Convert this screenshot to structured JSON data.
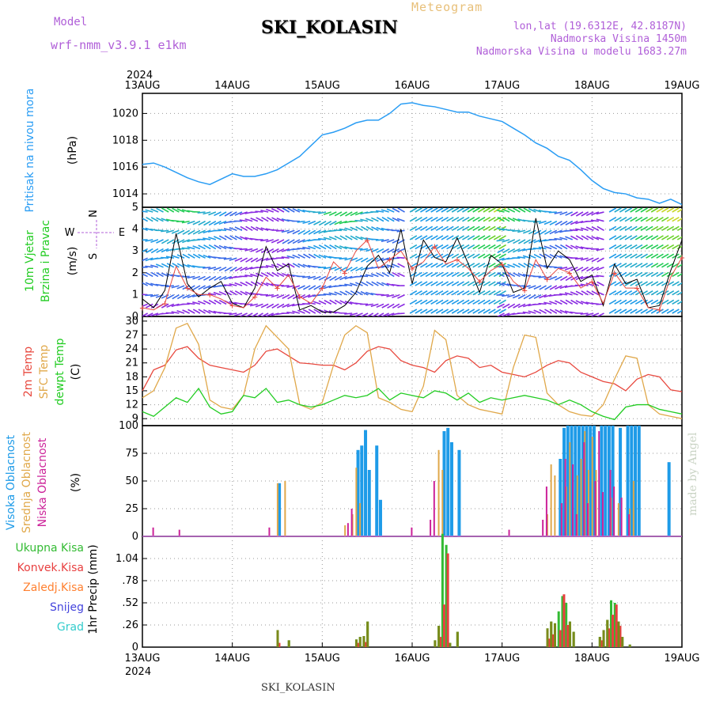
{
  "header": {
    "title": "SKI_KOLASIN",
    "subtitle": "Meteogram",
    "model_label": "Model",
    "model_name": "wrf-nmm_v3.9.1 e1km",
    "lonlat": "lon,lat (19.6312E, 42.8187N)",
    "elevation": "Nadmorska Visina 1450m",
    "model_elevation": "Nadmorska Visina u modelu 1683.27m",
    "year_top": "2024",
    "year_bottom": "2024",
    "bottom_station": "SKI_KOLASIN",
    "credit": "made by Angel"
  },
  "dates": [
    "13AUG",
    "14AUG",
    "15AUG",
    "16AUG",
    "17AUG",
    "18AUG",
    "19AUG"
  ],
  "colors": {
    "pressure": "#2a9df4",
    "temp2m": "#e8493f",
    "sfc": "#e0a84a",
    "dewpt": "#22cc22",
    "high_cloud": "#1e9be8",
    "mid_cloud": "#e0a84a",
    "low_cloud": "#cc2299",
    "total_precip": "#33bb33",
    "conv_precip": "#e84040",
    "frozen_precip": "#ff8030",
    "snow": "#4444dd",
    "hail": "#33cccc"
  },
  "panels": {
    "pressure": {
      "labels": [
        "Pritisak na nivou mora",
        "(hPa)"
      ]
    },
    "wind": {
      "labels": [
        "10m Vjetar",
        "Brzina i Pravac",
        "(m/s)"
      ],
      "compass": {
        "n": "N",
        "s": "S",
        "w": "W",
        "e": "E"
      }
    },
    "temp": {
      "labels": [
        "2m Temp",
        "SFC Temp",
        "dewpt Temp",
        "(C)"
      ]
    },
    "cloud": {
      "labels": [
        "Visoka Oblacnost",
        "Srednja Oblacnost",
        "Niska Oblacnost",
        "(%)"
      ]
    },
    "precip": {
      "labels": [
        "Ukupna Kisa",
        "Konvek.Kisa",
        "Zaledj.Kisa",
        "Snijeg",
        "Grad",
        "1hr Precip (mm)"
      ]
    }
  },
  "chart_data": [
    {
      "type": "line",
      "name": "pressure",
      "ylabel": "Pritisak na nivou mora (hPa)",
      "ylim": [
        1013,
        1021.5
      ],
      "yticks": [
        1014,
        1016,
        1018,
        1020
      ],
      "x": [
        0,
        3,
        6,
        9,
        12,
        15,
        18,
        21,
        24,
        27,
        30,
        33,
        36,
        39,
        42,
        45,
        48,
        51,
        54,
        57,
        60,
        63,
        66,
        69,
        72,
        75,
        78,
        81,
        84,
        87,
        90,
        93,
        96,
        99,
        102,
        105,
        108,
        111,
        114,
        117,
        120,
        123,
        126,
        129,
        132,
        135,
        138,
        141,
        144
      ],
      "series": [
        {
          "values": [
            1016.2,
            1016.3,
            1016.0,
            1015.6,
            1015.2,
            1014.9,
            1014.7,
            1015.1,
            1015.5,
            1015.3,
            1015.3,
            1015.5,
            1015.8,
            1016.3,
            1016.8,
            1017.6,
            1018.4,
            1018.6,
            1018.9,
            1019.3,
            1019.5,
            1019.5,
            1020.0,
            1020.7,
            1020.8,
            1020.6,
            1020.5,
            1020.3,
            1020.1,
            1020.1,
            1019.8,
            1019.6,
            1019.4,
            1018.9,
            1018.4,
            1017.8,
            1017.4,
            1016.8,
            1016.5,
            1015.8,
            1015.0,
            1014.4,
            1014.1,
            1014.0,
            1013.7,
            1013.6,
            1013.3,
            1013.6,
            1013.2
          ]
        }
      ]
    },
    {
      "type": "line",
      "name": "wind_speed",
      "ylabel": "(m/s)",
      "ylim": [
        0,
        5
      ],
      "yticks": [
        0,
        1,
        2,
        3,
        4,
        5
      ],
      "x": [
        0,
        3,
        6,
        9,
        12,
        15,
        18,
        21,
        24,
        27,
        30,
        33,
        36,
        39,
        42,
        45,
        48,
        51,
        54,
        57,
        60,
        63,
        66,
        69,
        72,
        75,
        78,
        81,
        84,
        87,
        90,
        93,
        96,
        99,
        102,
        105,
        108,
        111,
        114,
        117,
        120,
        123,
        126,
        129,
        132,
        135,
        138,
        141,
        144
      ],
      "series": [
        {
          "values": [
            0.8,
            0.4,
            1.2,
            3.8,
            1.5,
            0.9,
            1.3,
            1.6,
            0.6,
            0.4,
            1.3,
            3.2,
            2.1,
            2.4,
            0.3,
            0.5,
            0.2,
            0.2,
            0.5,
            1.1,
            2.3,
            2.8,
            2.0,
            4.0,
            1.5,
            3.5,
            2.7,
            2.5,
            3.6,
            2.4,
            1.1,
            2.8,
            2.4,
            1.1,
            1.3,
            4.5,
            2.2,
            3.0,
            2.6,
            1.6,
            1.9,
            0.5,
            2.4,
            1.5,
            1.7,
            0.4,
            0.5,
            2.1,
            3.5
          ]
        },
        {
          "values": [
            0.4,
            0.3,
            0.6,
            2.3,
            1.3,
            1.0,
            1.0,
            0.8,
            0.5,
            0.4,
            0.9,
            1.8,
            1.3,
            1.9,
            0.9,
            0.6,
            1.3,
            2.5,
            2.0,
            3.0,
            3.5,
            2.2,
            2.6,
            3.0,
            2.2,
            2.5,
            3.2,
            2.4,
            2.6,
            2.2,
            1.6,
            2.1,
            2.4,
            1.6,
            1.2,
            2.6,
            1.7,
            2.2,
            2.0,
            1.3,
            1.6,
            0.6,
            2.0,
            1.3,
            1.3,
            0.4,
            0.3,
            1.8,
            2.7
          ]
        }
      ]
    },
    {
      "type": "line",
      "name": "temperature",
      "ylabel": "(C)",
      "ylim": [
        7.5,
        31
      ],
      "yticks": [
        9,
        12,
        15,
        18,
        21,
        24,
        27,
        30
      ],
      "x": [
        0,
        3,
        6,
        9,
        12,
        15,
        18,
        21,
        24,
        27,
        30,
        33,
        36,
        39,
        42,
        45,
        48,
        51,
        54,
        57,
        60,
        63,
        66,
        69,
        72,
        75,
        78,
        81,
        84,
        87,
        90,
        93,
        96,
        99,
        102,
        105,
        108,
        111,
        114,
        117,
        120,
        123,
        126,
        129,
        132,
        135,
        138,
        141,
        144
      ],
      "series": [
        {
          "name": "2m Temp",
          "values": [
            15.0,
            19.5,
            20.5,
            23.8,
            24.5,
            22.0,
            20.5,
            20.0,
            19.5,
            19.0,
            20.5,
            23.5,
            24.0,
            22.5,
            21.0,
            20.8,
            20.5,
            20.5,
            19.5,
            21.0,
            23.5,
            24.5,
            24.0,
            21.5,
            20.5,
            20.0,
            19.0,
            21.5,
            22.5,
            22.0,
            20.0,
            20.5,
            19.0,
            18.5,
            18.0,
            19.0,
            20.5,
            21.5,
            21.0,
            19.0,
            18.0,
            17.0,
            16.5,
            15.0,
            17.5,
            18.5,
            18.0,
            15.2,
            14.8
          ]
        },
        {
          "name": "SFC Temp",
          "values": [
            13.5,
            15.0,
            20.0,
            28.5,
            29.5,
            25.0,
            13.0,
            11.5,
            11.0,
            14.0,
            24.0,
            29.0,
            26.5,
            24.0,
            12.0,
            11.0,
            12.5,
            20.5,
            27.0,
            29.0,
            27.5,
            13.5,
            12.5,
            11.0,
            10.5,
            16.0,
            28.0,
            26.0,
            14.0,
            12.0,
            11.0,
            10.5,
            10.0,
            20.0,
            27.0,
            26.5,
            14.5,
            12.0,
            10.5,
            9.8,
            9.5,
            12.0,
            17.5,
            22.5,
            22.0,
            12.0,
            10.0,
            9.5,
            9.0
          ]
        },
        {
          "name": "dewpt Temp",
          "values": [
            10.5,
            9.5,
            11.5,
            13.5,
            12.5,
            15.5,
            11.5,
            10.0,
            10.5,
            14.0,
            13.5,
            15.5,
            12.5,
            13.0,
            12.0,
            11.5,
            12.0,
            13.0,
            14.0,
            13.5,
            14.0,
            15.5,
            13.0,
            14.5,
            14.0,
            13.5,
            15.0,
            14.5,
            13.0,
            14.5,
            12.5,
            13.5,
            13.0,
            13.5,
            14.0,
            13.5,
            13.0,
            12.0,
            13.0,
            12.0,
            10.5,
            9.5,
            8.8,
            11.5,
            12.0,
            12.0,
            11.0,
            10.5,
            10.0
          ]
        }
      ]
    },
    {
      "type": "bar",
      "name": "cloud_cover",
      "ylabel": "(%)",
      "ylim": [
        0,
        100
      ],
      "yticks": [
        0,
        25,
        50,
        75,
        100
      ],
      "series": [
        {
          "name": "Visoka Oblacnost",
          "x": [
            36,
            57,
            58,
            59,
            60,
            62,
            63,
            80,
            81,
            82,
            84,
            111,
            112,
            113,
            114,
            115,
            116,
            117,
            118,
            119,
            120,
            122,
            123,
            124,
            125,
            127,
            129,
            130,
            131,
            132,
            140
          ],
          "values": [
            48,
            78,
            82,
            96,
            60,
            82,
            33,
            95,
            98,
            85,
            78,
            70,
            98,
            100,
            100,
            100,
            100,
            100,
            100,
            100,
            100,
            100,
            100,
            100,
            100,
            98,
            100,
            100,
            100,
            100,
            67
          ]
        },
        {
          "name": "Srednja Oblacnost",
          "x": [
            36,
            38,
            54,
            56,
            57,
            58,
            79,
            80,
            108,
            109,
            110,
            113,
            114,
            116,
            117,
            118,
            119,
            120,
            121,
            125,
            127,
            130,
            131
          ],
          "values": [
            48,
            50,
            10,
            20,
            62,
            30,
            78,
            60,
            20,
            65,
            55,
            45,
            85,
            55,
            70,
            95,
            60,
            90,
            60,
            35,
            30,
            25,
            50
          ]
        },
        {
          "name": "Niska Oblacnost",
          "x": [
            3,
            10,
            34,
            55,
            56,
            72,
            77,
            78,
            98,
            107,
            108,
            112,
            113,
            115,
            116,
            118,
            119,
            121,
            122,
            123,
            125,
            126,
            128,
            130
          ],
          "values": [
            8,
            6,
            8,
            12,
            25,
            8,
            15,
            50,
            6,
            15,
            45,
            30,
            70,
            65,
            20,
            85,
            30,
            50,
            95,
            40,
            60,
            45,
            35,
            20
          ]
        }
      ]
    },
    {
      "type": "bar",
      "name": "precipitation",
      "ylabel": "1hr Precip (mm)",
      "ylim": [
        0,
        1.3
      ],
      "yticks": [
        0,
        0.26,
        0.52,
        0.78,
        1.04
      ],
      "series": [
        {
          "name": "Ukupna Kisa",
          "x": [
            36,
            39,
            57,
            58,
            59,
            60,
            78,
            79,
            80,
            81,
            82,
            84,
            108,
            109,
            110,
            111,
            112,
            113,
            114,
            115,
            122,
            123,
            124,
            125,
            126,
            127,
            128,
            130
          ],
          "values": [
            0.2,
            0.08,
            0.09,
            0.12,
            0.13,
            0.3,
            0.08,
            0.25,
            1.33,
            1.2,
            0.05,
            0.18,
            0.22,
            0.3,
            0.28,
            0.42,
            0.6,
            0.52,
            0.3,
            0.18,
            0.12,
            0.2,
            0.32,
            0.55,
            0.52,
            0.3,
            0.12,
            0.03
          ]
        },
        {
          "name": "Konvek.Kisa",
          "x": [
            36,
            57,
            59,
            79,
            80,
            81,
            108,
            109,
            111,
            112,
            113,
            122,
            124,
            125,
            126,
            127
          ],
          "values": [
            0.05,
            0.05,
            0.06,
            0.12,
            0.5,
            1.1,
            0.1,
            0.15,
            0.2,
            0.62,
            0.26,
            0.08,
            0.22,
            0.38,
            0.5,
            0.25
          ]
        }
      ]
    }
  ]
}
